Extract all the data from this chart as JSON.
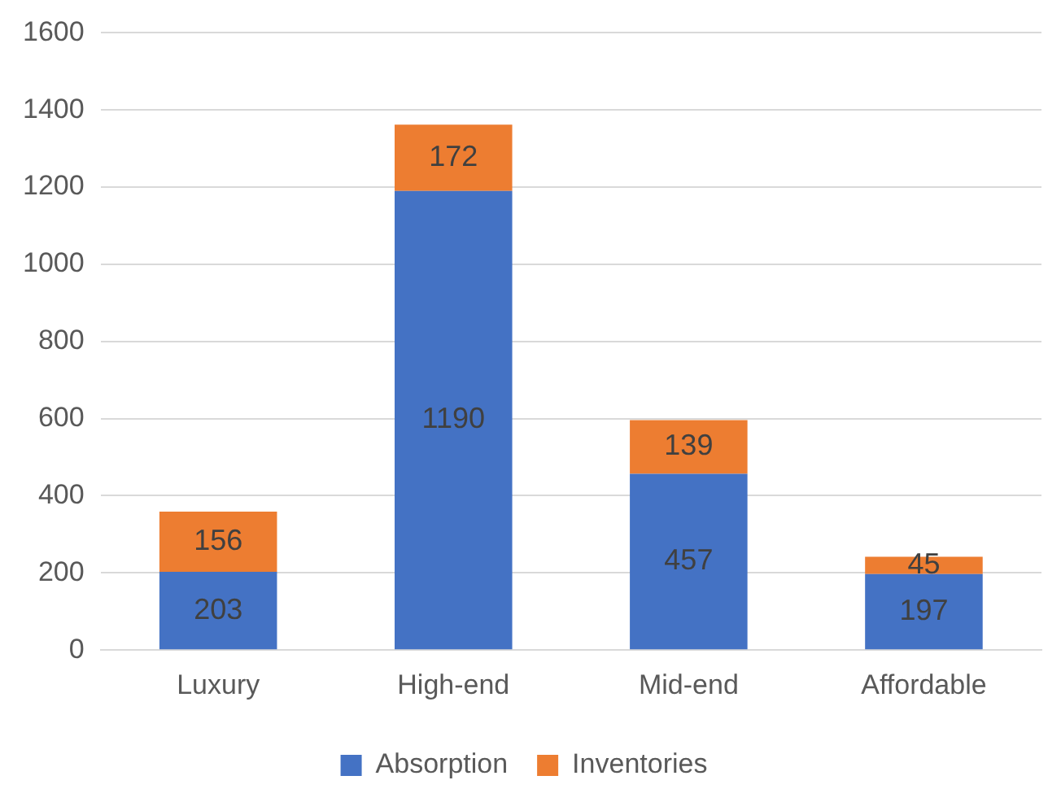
{
  "chart_data": {
    "type": "bar",
    "stacked": true,
    "categories": [
      "Luxury",
      "High-end",
      "Mid-end",
      "Affordable"
    ],
    "series": [
      {
        "name": "Absorption",
        "color": "#4472c4",
        "values": [
          203,
          1190,
          457,
          197
        ]
      },
      {
        "name": "Inventories",
        "color": "#ed7d31",
        "values": [
          156,
          172,
          139,
          45
        ]
      }
    ],
    "ylim": [
      0,
      1600
    ],
    "yticks": [
      0,
      200,
      400,
      600,
      800,
      1000,
      1200,
      1400,
      1600
    ],
    "grid": "y",
    "legend": "bottom",
    "data_labels": true
  }
}
